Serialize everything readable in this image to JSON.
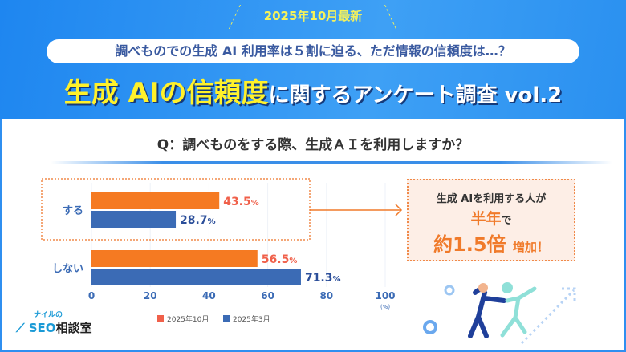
{
  "header": {
    "badge": "2025年10月最新",
    "subtitle": "調べものでの生成 AI 利用率は５割に迫る、ただ情報の信頼度は…？",
    "title_highlight": "生成 AIの信頼度",
    "title_rest": "に関するアンケート調査 vol.2"
  },
  "question": "Q：調べものをする際、生成ＡＩを利用しますか？",
  "callout": {
    "line1": "生成 AIを利用する人が",
    "line2a": "半年",
    "line2b": "で",
    "line3a": "約1.5倍",
    "line3b": "増加！"
  },
  "logo": {
    "small": "ナイルの",
    "seo": "SEO",
    "rest": "相談室"
  },
  "colors": {
    "oct": "#f57a22",
    "mar": "#3b6bb5",
    "oct_label": "#f0604a",
    "mar_label": "#2c4f9a",
    "accent": "#2f8ff0"
  },
  "chart_data": {
    "type": "bar",
    "orientation": "horizontal",
    "categories": [
      "する",
      "しない"
    ],
    "series": [
      {
        "name": "2025年10月",
        "values": [
          43.5,
          56.5
        ]
      },
      {
        "name": "2025年3月",
        "values": [
          28.7,
          71.3
        ]
      }
    ],
    "xlim": [
      0,
      100
    ],
    "xticks": [
      "0",
      "20",
      "40",
      "60",
      "80",
      "100"
    ],
    "xunit": "(%)",
    "value_suffix": "%",
    "legend": "bottom",
    "grid": true
  }
}
